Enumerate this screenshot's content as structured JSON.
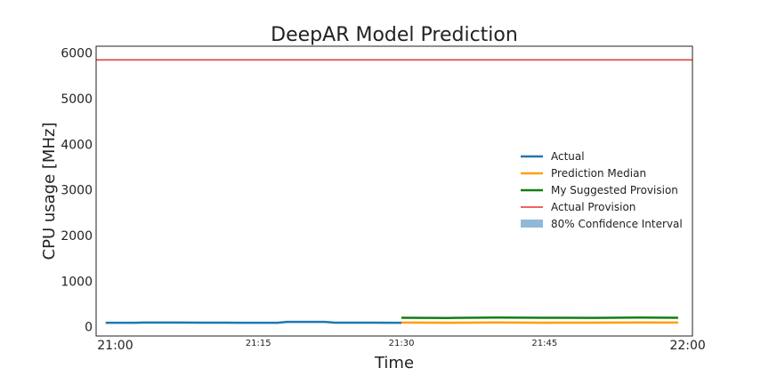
{
  "chart_data": {
    "type": "line",
    "title": "DeepAR Model Prediction",
    "xlabel": "Time",
    "ylabel": "CPU usage [MHz]",
    "x_ticks": [
      "21:00",
      "21:15",
      "21:30",
      "21:45",
      "22:00"
    ],
    "x_tick_minutes": [
      0,
      15,
      30,
      45,
      60
    ],
    "x_range_minutes": [
      -2,
      60.5
    ],
    "y_ticks": [
      0,
      1000,
      2000,
      3000,
      4000,
      5000,
      6000
    ],
    "ylim": [
      -200,
      6150
    ],
    "grid": false,
    "legend_position": "center-right",
    "series": [
      {
        "name": "Actual",
        "color": "#1f77b4",
        "x_minutes": [
          -1,
          0,
          2,
          3,
          5,
          7,
          9,
          11,
          13,
          15,
          17,
          18,
          20,
          22,
          23,
          25,
          27,
          29,
          30
        ],
        "values": [
          90,
          90,
          90,
          95,
          95,
          95,
          92,
          92,
          90,
          90,
          90,
          110,
          110,
          110,
          92,
          92,
          92,
          90,
          90
        ]
      },
      {
        "name": "Prediction Median",
        "color": "#ff9f0e",
        "x_minutes": [
          30,
          35,
          40,
          45,
          50,
          55,
          59
        ],
        "values": [
          95,
          90,
          98,
          90,
          92,
          98,
          95
        ]
      },
      {
        "name": "My Suggested Provision",
        "color": "#127f12",
        "x_minutes": [
          30,
          35,
          40,
          45,
          50,
          55,
          59
        ],
        "values": [
          200,
          195,
          205,
          200,
          198,
          203,
          200
        ]
      },
      {
        "name": "Actual Provision",
        "color": "#e8302a",
        "x_minutes": [
          -2,
          60.5
        ],
        "values": [
          5850,
          5850
        ]
      }
    ],
    "confidence_interval": {
      "name": "80% Confidence Interval",
      "color": "#8fb9d9",
      "x_minutes": [
        30,
        59
      ],
      "low": [
        80,
        80
      ],
      "high": [
        115,
        115
      ]
    }
  }
}
